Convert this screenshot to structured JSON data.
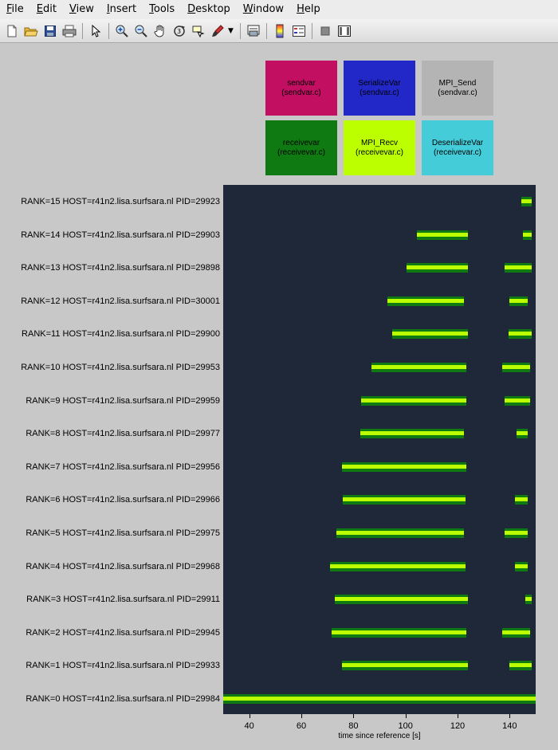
{
  "menu": {
    "items": [
      {
        "mn": "F",
        "rest": "ile"
      },
      {
        "mn": "E",
        "rest": "dit"
      },
      {
        "mn": "V",
        "rest": "iew"
      },
      {
        "mn": "I",
        "rest": "nsert"
      },
      {
        "mn": "T",
        "rest": "ools"
      },
      {
        "mn": "D",
        "rest": "esktop"
      },
      {
        "mn": "W",
        "rest": "indow"
      },
      {
        "mn": "H",
        "rest": "elp"
      }
    ]
  },
  "toolbar": {
    "icons": [
      "new-figure-icon",
      "open-file-icon",
      "save-icon",
      "print-icon",
      "edit-plot-arrow-icon",
      "zoom-in-icon",
      "zoom-out-icon",
      "pan-hand-icon",
      "rotate-3d-icon",
      "data-cursor-icon",
      "brush-icon",
      "link-plot-icon",
      "colorbar-icon",
      "legend-icon",
      "hide-plot-tools-icon",
      "show-plot-tools-icon"
    ]
  },
  "legend": [
    {
      "name": "sendvar",
      "file": "(sendvar.c)",
      "color": "#c20f62",
      "text_color": "#000000"
    },
    {
      "name": "SerializeVar",
      "file": "(sendvar.c)",
      "color": "#2228c8",
      "text_color": "#000000"
    },
    {
      "name": "MPI_Send",
      "file": "(sendvar.c)",
      "color": "#b4b4b4",
      "text_color": "#000000"
    },
    {
      "name": "receivevar",
      "file": "(receivevar.c)",
      "color": "#0f7a12",
      "text_color": "#000000"
    },
    {
      "name": "MPI_Recv",
      "file": "(receivevar.c)",
      "color": "#bcff00",
      "text_color": "#000000"
    },
    {
      "name": "DeserializeVar",
      "file": "(receivevar.c)",
      "color": "#44ccd8",
      "text_color": "#000000"
    }
  ],
  "chart_data": {
    "type": "timeline",
    "xlabel": "time since reference [s]",
    "xlim": [
      30,
      150
    ],
    "xticks": [
      40,
      60,
      80,
      100,
      120,
      140
    ],
    "rows": [
      {
        "label": "RANK=15 HOST=r41n2.lisa.surfsara.nl PID=29923",
        "segments": [
          [
            144.5,
            148.5
          ]
        ]
      },
      {
        "label": "RANK=14 HOST=r41n2.lisa.surfsara.nl PID=29903",
        "segments": [
          [
            104.5,
            124
          ],
          [
            145,
            148.5
          ]
        ]
      },
      {
        "label": "RANK=13 HOST=r41n2.lisa.surfsara.nl PID=29898",
        "segments": [
          [
            100.5,
            124
          ],
          [
            138,
            148.5
          ]
        ]
      },
      {
        "label": "RANK=12 HOST=r41n2.lisa.surfsara.nl PID=30001",
        "segments": [
          [
            93,
            122.5
          ],
          [
            140,
            147
          ]
        ]
      },
      {
        "label": "RANK=11 HOST=r41n2.lisa.surfsara.nl PID=29900",
        "segments": [
          [
            95,
            124
          ],
          [
            139.5,
            148.5
          ]
        ]
      },
      {
        "label": "RANK=10 HOST=r41n2.lisa.surfsara.nl PID=29953",
        "segments": [
          [
            87,
            123.5
          ],
          [
            137,
            148
          ]
        ]
      },
      {
        "label": "RANK=9 HOST=r41n2.lisa.surfsara.nl PID=29959",
        "segments": [
          [
            83,
            123.5
          ],
          [
            138,
            148
          ]
        ]
      },
      {
        "label": "RANK=8 HOST=r41n2.lisa.surfsara.nl PID=29977",
        "segments": [
          [
            82.5,
            122.5
          ],
          [
            142.5,
            147
          ]
        ]
      },
      {
        "label": "RANK=7 HOST=r41n2.lisa.surfsara.nl PID=29956",
        "segments": [
          [
            75.5,
            123.5
          ]
        ]
      },
      {
        "label": "RANK=6 HOST=r41n2.lisa.surfsara.nl PID=29966",
        "segments": [
          [
            76,
            123
          ],
          [
            142,
            147
          ]
        ]
      },
      {
        "label": "RANK=5 HOST=r41n2.lisa.surfsara.nl PID=29975",
        "segments": [
          [
            73.5,
            122.5
          ],
          [
            138,
            147
          ]
        ]
      },
      {
        "label": "RANK=4 HOST=r41n2.lisa.surfsara.nl PID=29968",
        "segments": [
          [
            71,
            123
          ],
          [
            142,
            147
          ]
        ]
      },
      {
        "label": "RANK=3 HOST=r41n2.lisa.surfsara.nl PID=29911",
        "segments": [
          [
            73,
            124
          ],
          [
            146,
            148.5
          ]
        ]
      },
      {
        "label": "RANK=2 HOST=r41n2.lisa.surfsara.nl PID=29945",
        "segments": [
          [
            71.5,
            123.5
          ],
          [
            137,
            148
          ]
        ]
      },
      {
        "label": "RANK=1 HOST=r41n2.lisa.surfsara.nl PID=29933",
        "segments": [
          [
            75.5,
            124
          ],
          [
            140,
            148.5
          ]
        ]
      },
      {
        "label": "RANK=0 HOST=r41n2.lisa.surfsara.nl PID=29984",
        "segments": [
          [
            30,
            150
          ]
        ]
      }
    ]
  }
}
